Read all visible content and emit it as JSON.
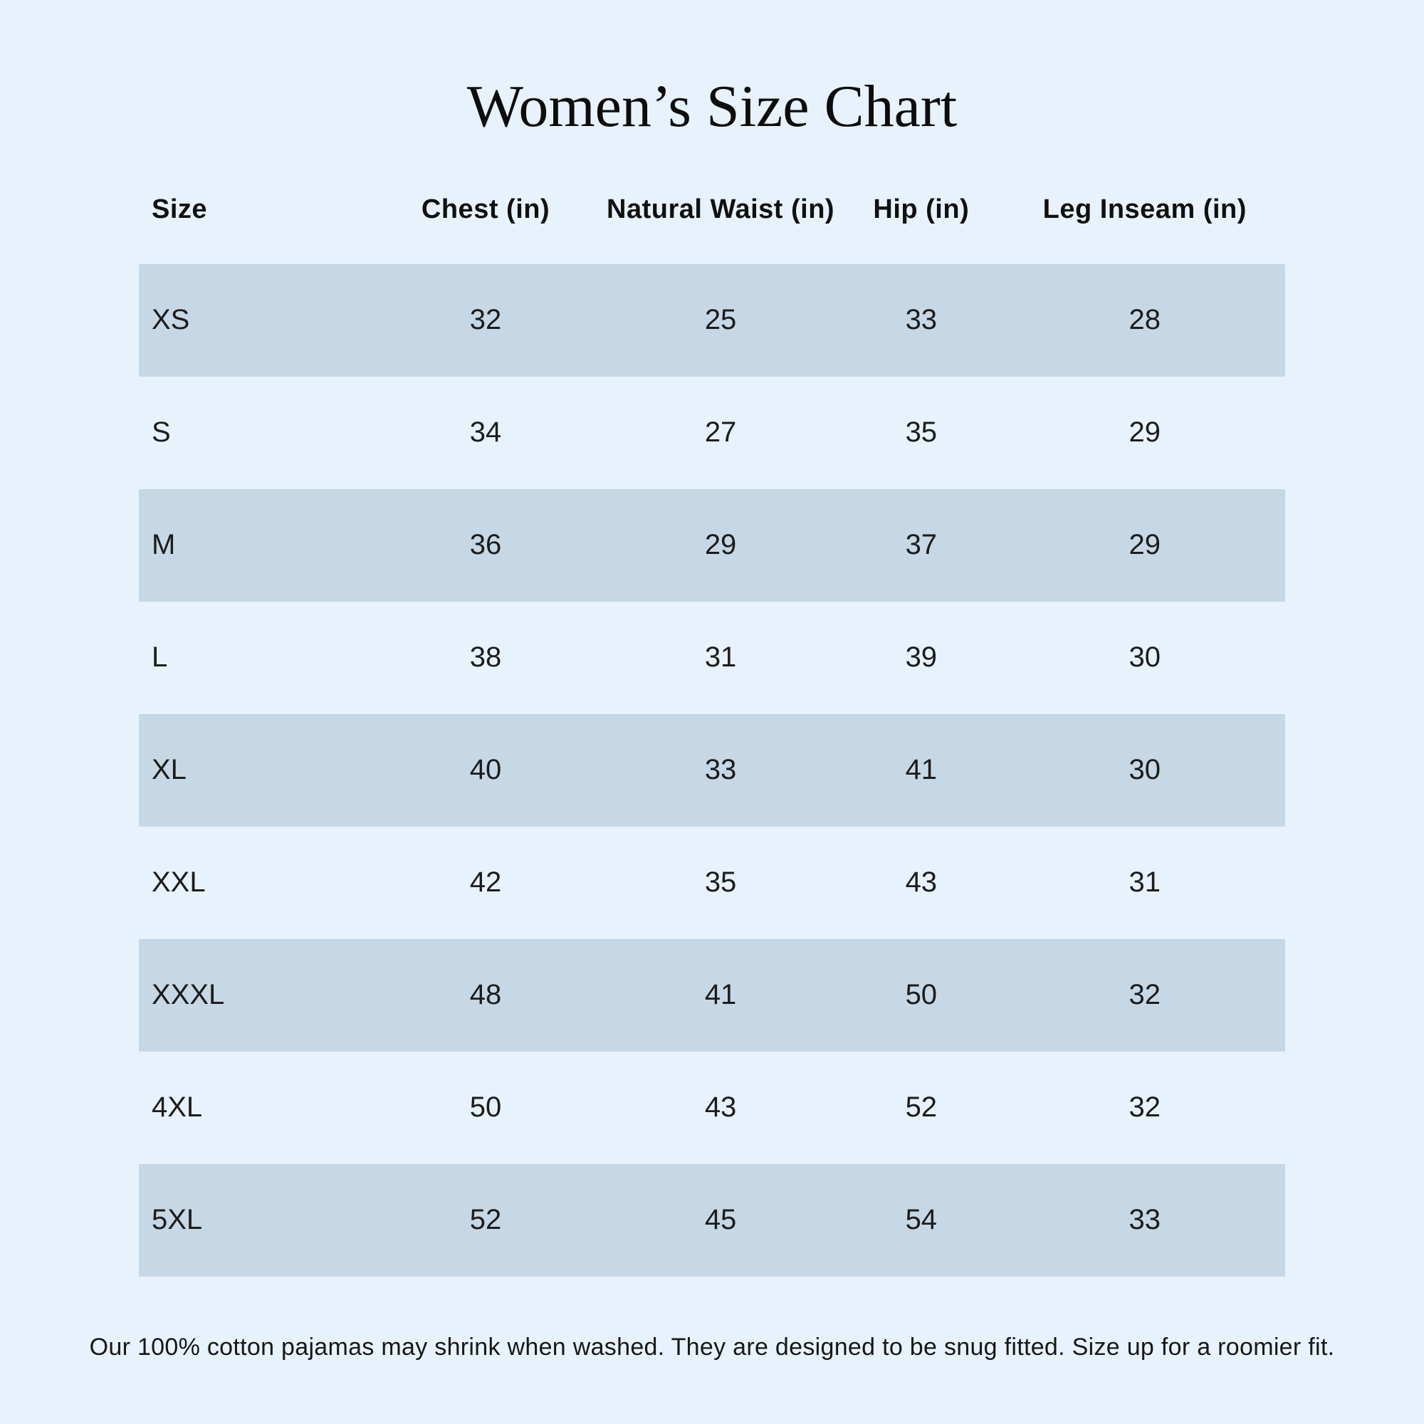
{
  "page": {
    "title": "Women’s Size Chart",
    "footer_note": "Our 100% cotton pajamas may shrink when washed. They are designed to be snug fitted. Size up for a roomier fit."
  },
  "colors": {
    "page_background": "#e8f2fc",
    "row_stripe": "#c6d8e5",
    "text": "#161616"
  },
  "chart_data": {
    "type": "table",
    "title": "Women’s Size Chart",
    "columns": [
      "Size",
      "Chest (in)",
      "Natural Waist (in)",
      "Hip (in)",
      "Leg Inseam (in)"
    ],
    "rows": [
      [
        "XS",
        "32",
        "25",
        "33",
        "28"
      ],
      [
        "S",
        "34",
        "27",
        "35",
        "29"
      ],
      [
        "M",
        "36",
        "29",
        "37",
        "29"
      ],
      [
        "L",
        "38",
        "31",
        "39",
        "30"
      ],
      [
        "XL",
        "40",
        "33",
        "41",
        "30"
      ],
      [
        "XXL",
        "42",
        "35",
        "43",
        "31"
      ],
      [
        "XXXL",
        "48",
        "41",
        "50",
        "32"
      ],
      [
        "4XL",
        "50",
        "43",
        "52",
        "32"
      ],
      [
        "5XL",
        "52",
        "45",
        "54",
        "33"
      ]
    ],
    "layout": {
      "stripe_pattern": "odd-rows-shaded",
      "first_column_align": "left",
      "other_columns_align": "center"
    }
  }
}
